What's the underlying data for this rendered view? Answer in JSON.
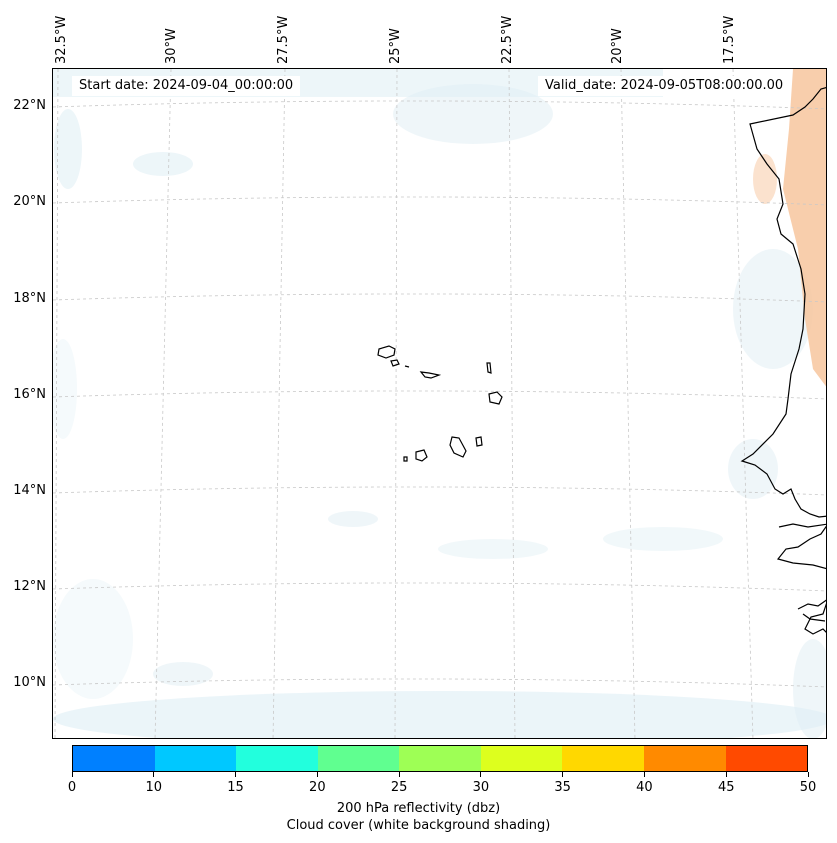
{
  "map": {
    "start_date": "Start date: 2024-09-04_00:00:00",
    "valid_date": "Valid_date: 2024-09-05T08:00:00.00",
    "longitude_labels": [
      "32.5°W",
      "30°W",
      "27.5°W",
      "25°W",
      "22.5°W",
      "20°W",
      "17.5°W"
    ],
    "latitude_labels": [
      "22°N",
      "20°N",
      "18°N",
      "16°N",
      "14°N",
      "12°N",
      "10°N"
    ]
  },
  "colorbar": {
    "ticks": [
      "0",
      "10",
      "15",
      "20",
      "25",
      "30",
      "35",
      "40",
      "45",
      "50"
    ],
    "colors": [
      "#0080ff",
      "#00c8ff",
      "#22ffdd",
      "#60ff90",
      "#9eff55",
      "#ddff1e",
      "#ffd800",
      "#ff8a00",
      "#ff4a00"
    ],
    "label_line1": "200 hPa reflectivity (dbz)",
    "label_line2": "Cloud cover (white background shading)"
  },
  "colors": {
    "cloud": "#d6eaf2",
    "reflectivity_orange": "#f7c69e",
    "coastline": "#000000",
    "grid": "#c8c8c8"
  }
}
